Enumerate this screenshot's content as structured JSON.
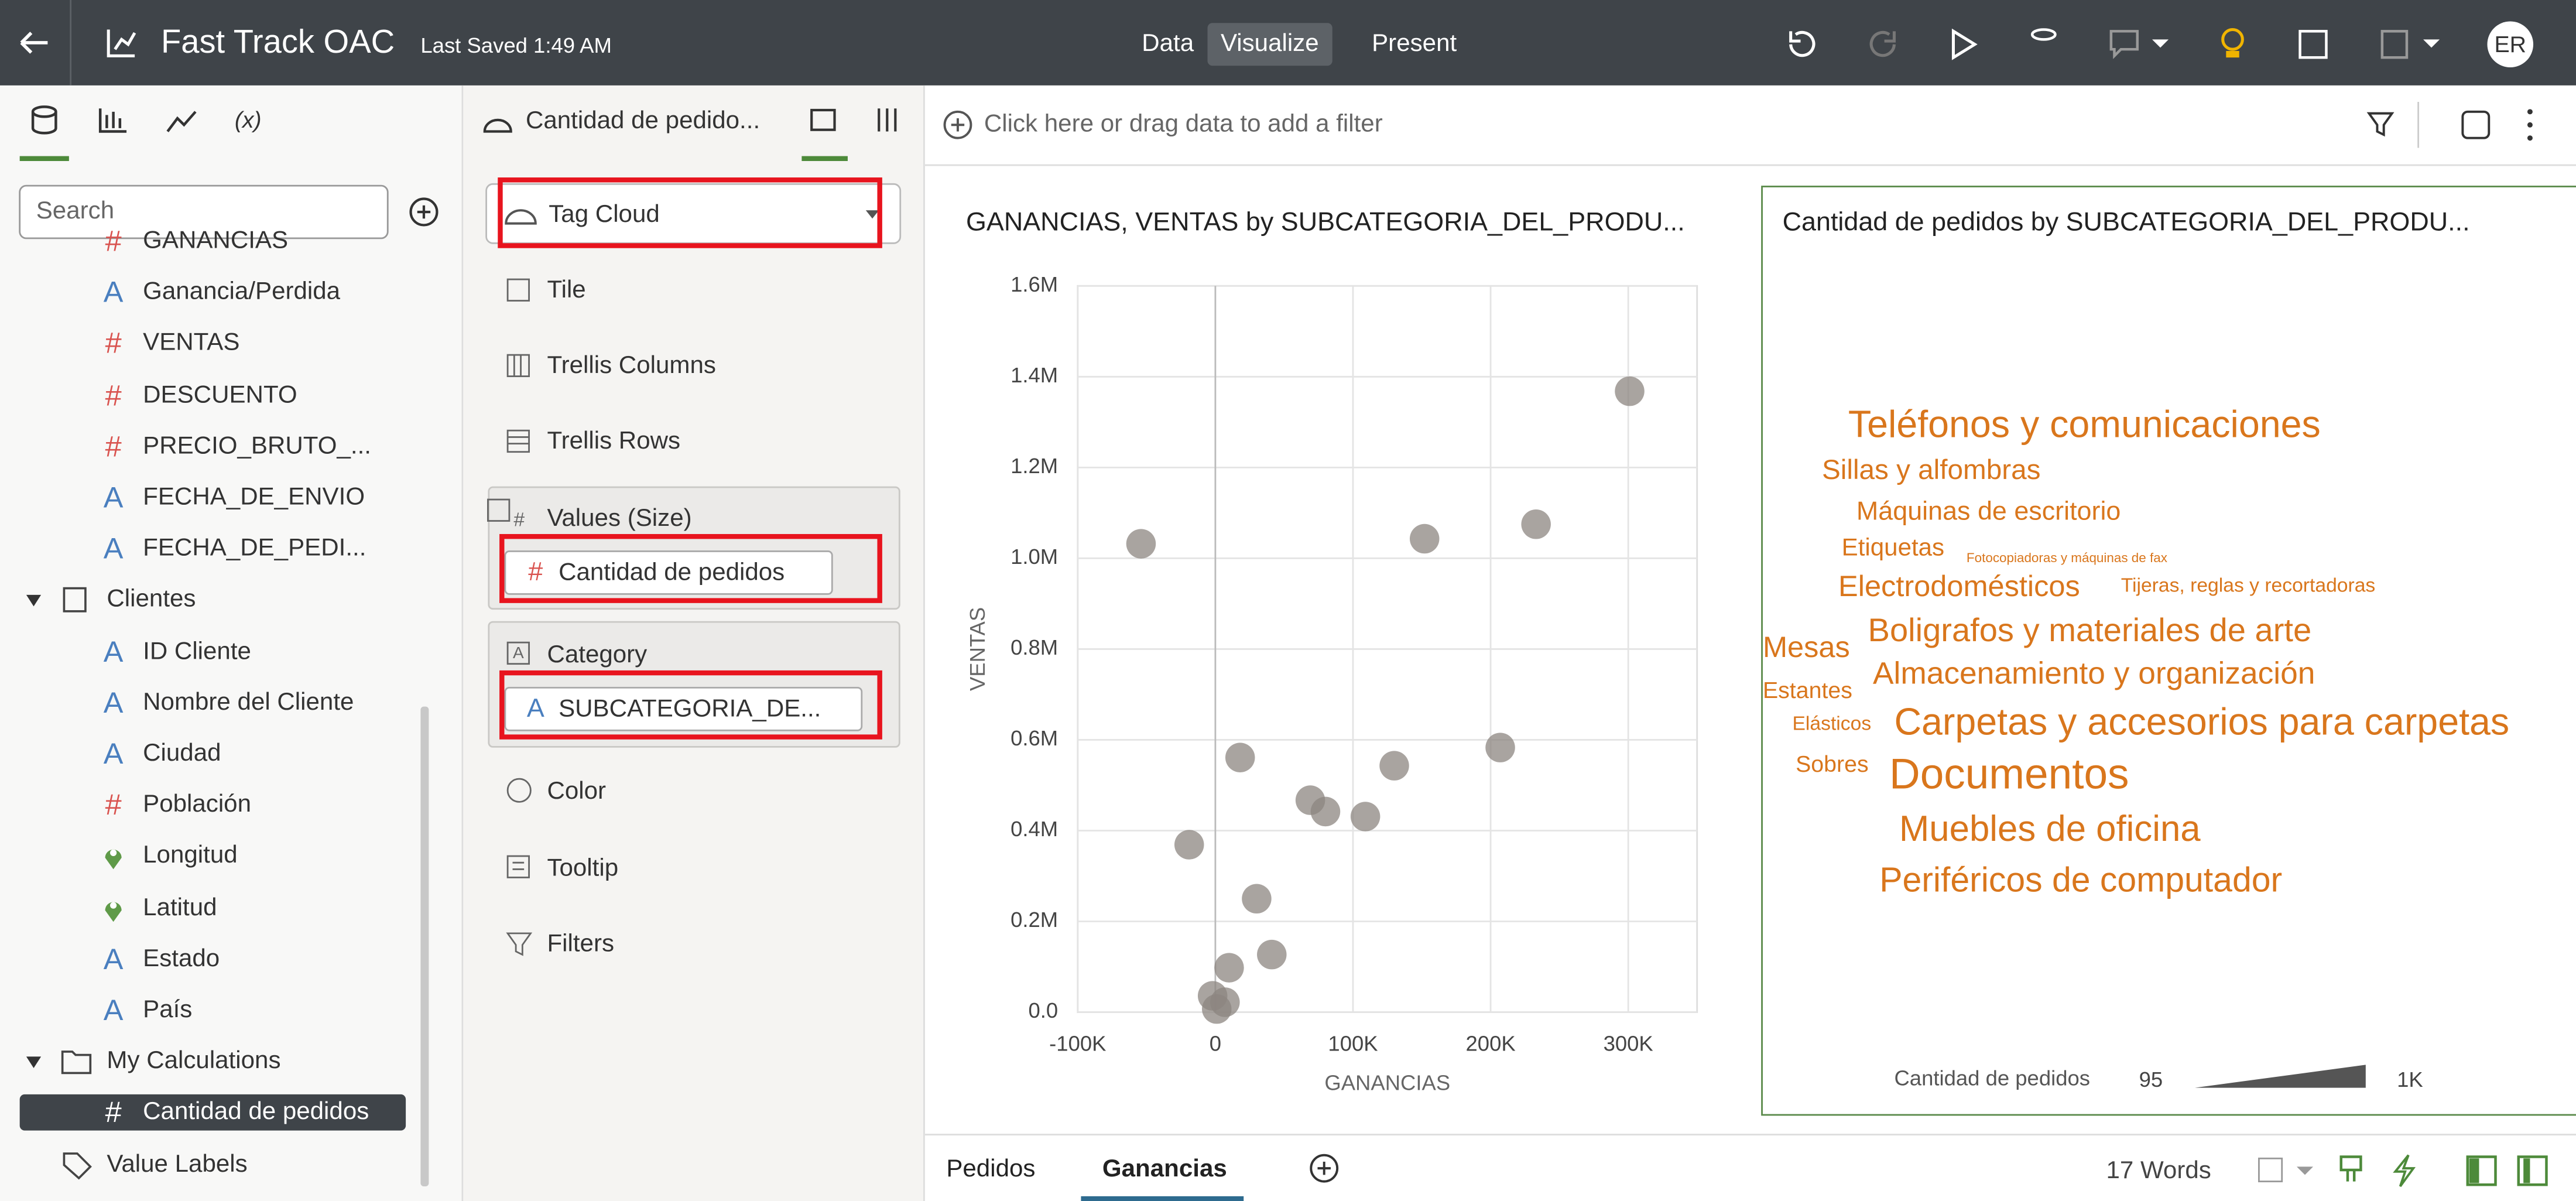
{
  "header": {
    "title": "Fast Track OAC",
    "saved": "Last Saved 1:49 AM",
    "tabs": [
      "Data",
      "Visualize",
      "Present"
    ],
    "active_tab": 1,
    "avatar": "ER"
  },
  "data_panel": {
    "search": "Search",
    "items": [
      {
        "label": "GANANCIAS",
        "icon": "#"
      },
      {
        "label": "Ganancia/Perdida",
        "icon": "A"
      },
      {
        "label": "VENTAS",
        "icon": "#"
      },
      {
        "label": "DESCUENTO",
        "icon": "#"
      },
      {
        "label": "PRECIO_BRUTO_...",
        "icon": "#"
      },
      {
        "label": "FECHA_DE_ENVIO",
        "icon": "A"
      },
      {
        "label": "FECHA_DE_PEDI...",
        "icon": "A"
      },
      {
        "label": "Clientes",
        "icon": "table"
      },
      {
        "label": "ID Cliente",
        "icon": "A"
      },
      {
        "label": "Nombre del Cliente",
        "icon": "A"
      },
      {
        "label": "Ciudad",
        "icon": "A"
      },
      {
        "label": "Población",
        "icon": "#"
      },
      {
        "label": "Longitud",
        "icon": "geo"
      },
      {
        "label": "Latitud",
        "icon": "geo"
      },
      {
        "label": "Estado",
        "icon": "A"
      },
      {
        "label": "País",
        "icon": "A"
      },
      {
        "label": "My Calculations",
        "icon": "folder"
      },
      {
        "label": "Cantidad de pedidos",
        "icon": "#",
        "selected": true
      },
      {
        "label": "Value Labels",
        "icon": "tag"
      }
    ]
  },
  "grammar_panel": {
    "title": "Cantidad de pedido...",
    "viz_type": "Tag Cloud",
    "tile": "Tile",
    "trellis_columns": "Trellis Columns",
    "trellis_rows": "Trellis Rows",
    "values_size": {
      "label": "Values (Size)",
      "pill": "Cantidad de pedidos"
    },
    "category": {
      "label": "Category",
      "pill": "SUBCATEGORIA_DE..."
    },
    "color": "Color",
    "tooltip": "Tooltip",
    "filters": "Filters"
  },
  "filter_bar": "Click here or drag data to add a filter",
  "chart_data": [
    {
      "type": "scatter",
      "title": "GANANCIAS, VENTAS by SUBCATEGORIA_DEL_PRODU...",
      "x_label": "GANANCIAS",
      "y_label": "VENTAS",
      "color": "#8c8680",
      "x": [
        -54000,
        301000,
        152000,
        233000,
        18000,
        -19000,
        130000,
        207000,
        69000,
        80000,
        109000,
        30000,
        41000,
        10000,
        -2000,
        7000,
        1000
      ],
      "values": [
        1032000,
        1368000,
        1043000,
        1075000,
        561000,
        369000,
        543000,
        583000,
        467000,
        442000,
        431000,
        250000,
        127000,
        98000,
        36000,
        22000,
        7000
      ],
      "xlim": [
        -100000,
        350000
      ],
      "xticks": [
        {
          "value": -100000,
          "label": "-100K"
        },
        0,
        {
          "value": 100000,
          "label": "100K"
        },
        {
          "value": 200000,
          "label": "200K"
        },
        {
          "value": 300000,
          "label": "300K"
        }
      ],
      "ylim": [
        0,
        1600000
      ],
      "yticks": [
        {
          "value": 0,
          "label": "0.0"
        },
        {
          "value": 200000,
          "label": "0.2M"
        },
        {
          "value": 400000,
          "label": "0.4M"
        },
        {
          "value": 600000,
          "label": "0.6M"
        },
        {
          "value": 800000,
          "label": "0.8M"
        },
        {
          "value": 1000000,
          "label": "1.0M"
        },
        {
          "value": 1200000,
          "label": "1.2M"
        },
        {
          "value": 1400000,
          "label": "1.4M"
        },
        {
          "value": 1600000,
          "label": "1.6M"
        }
      ],
      "grid": true
    },
    {
      "type": "tag_cloud",
      "title": "Cantidad de pedidos by SUBCATEGORIA_DEL_PRODU...",
      "color": "#d9761c",
      "categories": [
        "Teléfonos y comunicaciones",
        "Sillas y alfombras",
        "Máquinas de escritorio",
        "Etiquetas",
        "Fotocopiadoras y máquinas de fax",
        "Electrodomésticos",
        "Tijeras, reglas y recortadoras",
        "Mesas",
        "Boligrafos y materiales de arte",
        "Estantes",
        "Almacenamiento y organización",
        "Elásticos",
        "Carpetas y accesorios para carpetas",
        "Sobres",
        "Documentos",
        "Muebles de oficina",
        "Periféricos de computador"
      ],
      "values": [
        849,
        547,
        497,
        447,
        95,
        598,
        296,
        598,
        698,
        397,
        648,
        296,
        849,
        397,
        1000,
        799,
        749
      ],
      "size_legend": {
        "title": "Cantidad de pedidos",
        "min": 95,
        "max": {
          "value": 1000,
          "label": "1K"
        }
      }
    }
  ],
  "canvas_tabs": [
    "Pedidos",
    "Ganancias"
  ],
  "active_canvas_tab": 1,
  "status": "17 Words"
}
